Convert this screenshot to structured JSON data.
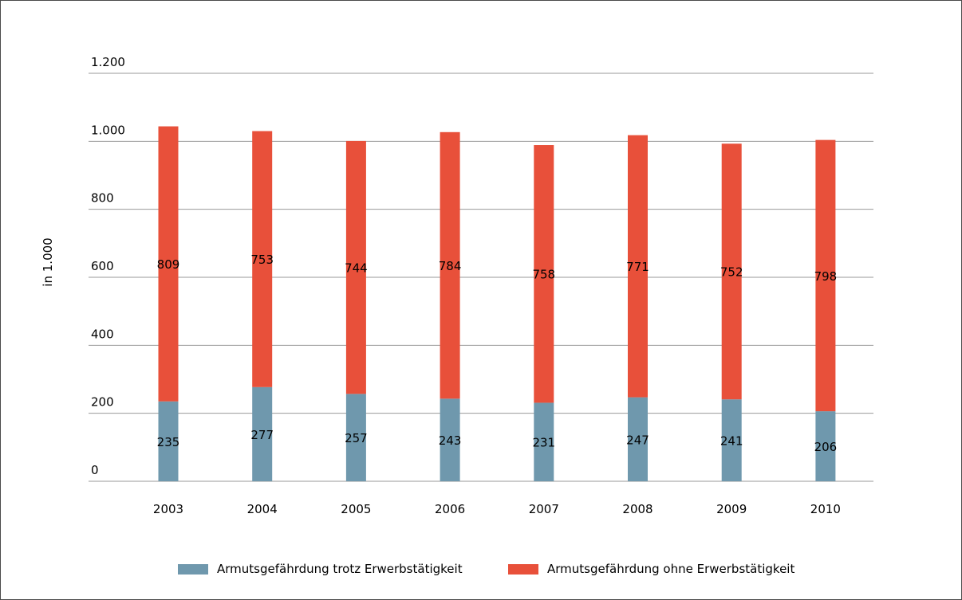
{
  "colors": {
    "series_1": "#6f98ad",
    "series_2": "#e8503a",
    "grid": "#999999"
  },
  "chart_data": {
    "type": "bar",
    "stacked": true,
    "title": "",
    "xlabel": "",
    "ylabel": "in 1.000",
    "categories": [
      "2003",
      "2004",
      "2005",
      "2006",
      "2007",
      "2008",
      "2009",
      "2010"
    ],
    "series": [
      {
        "name": "Armutsgefährdung trotz Erwerbstätigkeit",
        "values": [
          235,
          277,
          257,
          243,
          231,
          247,
          241,
          206
        ]
      },
      {
        "name": "Armutsgefährdung ohne Erwerbstätigkeit",
        "values": [
          809,
          753,
          744,
          784,
          758,
          771,
          752,
          798
        ]
      }
    ],
    "data_labels": [
      [
        "235",
        "277",
        "257",
        "243",
        "231",
        "247",
        "241",
        "206"
      ],
      [
        "809",
        "753",
        "744",
        "784",
        "758",
        "771",
        "752",
        "798"
      ]
    ],
    "ylim": [
      0,
      1200
    ],
    "yticks": [
      0,
      200,
      400,
      600,
      800,
      1000,
      1200
    ],
    "ytick_labels": [
      "0",
      "200",
      "400",
      "600",
      "800",
      "1.000",
      "1.200"
    ],
    "grid": true,
    "legend_position": "bottom"
  }
}
